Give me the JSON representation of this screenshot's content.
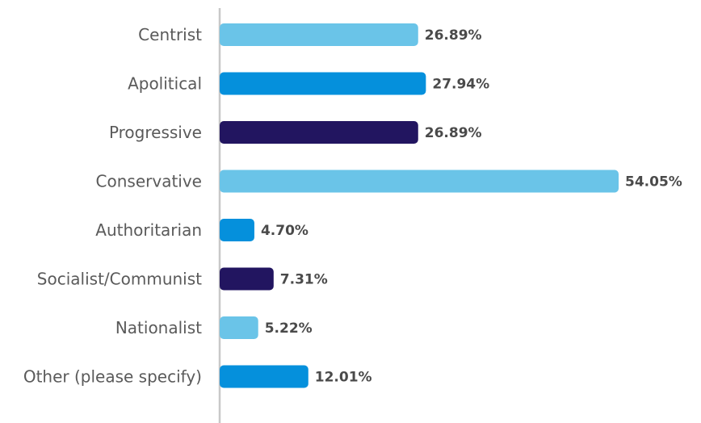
{
  "chart_data": {
    "type": "bar",
    "orientation": "horizontal",
    "categories": [
      "Centrist",
      "Apolitical",
      "Progressive",
      "Conservative",
      "Authoritarian",
      "Socialist/Communist",
      "Nationalist",
      "Other (please specify)"
    ],
    "values": [
      26.89,
      27.94,
      26.89,
      54.05,
      4.7,
      7.31,
      5.22,
      12.01
    ],
    "value_labels": [
      "26.89%",
      "27.94%",
      "26.89%",
      "54.05%",
      "4.70%",
      "7.31%",
      "5.22%",
      "12.01%"
    ],
    "bar_colors": [
      "#6ac4e8",
      "#0590dc",
      "#221560",
      "#6ac4e8",
      "#0590dc",
      "#221560",
      "#6ac4e8",
      "#0590dc"
    ],
    "xlim": [
      0,
      100
    ],
    "grid": false,
    "legend": "none"
  },
  "colors": {
    "axis": "#c8c8c8",
    "label_text": "#5a5a5a",
    "value_text": "#4a4a4a"
  }
}
